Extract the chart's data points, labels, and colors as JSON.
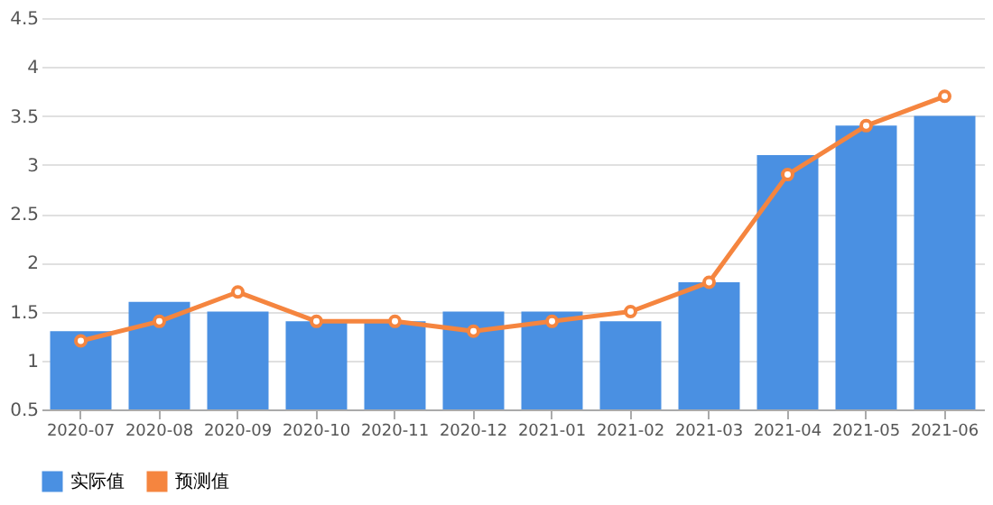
{
  "chart_data": {
    "type": "bar",
    "categories": [
      "2020-07",
      "2020-08",
      "2020-09",
      "2020-10",
      "2020-11",
      "2020-12",
      "2021-01",
      "2021-02",
      "2021-03",
      "2021-04",
      "2021-05",
      "2021-06"
    ],
    "series": [
      {
        "name": "实际值",
        "color": "#4a90e2",
        "values": [
          1.3,
          1.6,
          1.5,
          1.4,
          1.4,
          1.5,
          1.5,
          1.4,
          1.8,
          3.1,
          3.4,
          3.5
        ]
      },
      {
        "name": "预测值",
        "type": "line",
        "color": "#f5853f",
        "marker": "circle",
        "values": [
          1.2,
          1.4,
          1.7,
          1.4,
          1.4,
          1.3,
          1.4,
          1.5,
          1.8,
          2.9,
          3.4,
          3.7
        ]
      }
    ],
    "ylim": [
      0.5,
      4.5
    ],
    "yticks": [
      0.5,
      1,
      1.5,
      2,
      2.5,
      3,
      3.5,
      4,
      4.5
    ],
    "grid": "y",
    "legend": "bottom left"
  }
}
